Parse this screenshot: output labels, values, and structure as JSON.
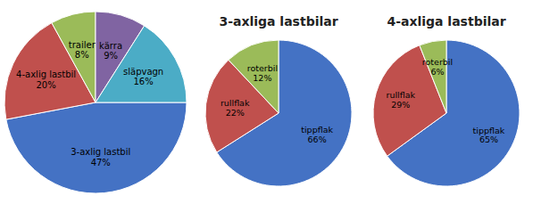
{
  "chart_data": [
    {
      "type": "pie",
      "categories": [
        "3-axlig lastbil",
        "4-axlig lastbil",
        "trailer",
        "kärra",
        "släpvagn"
      ],
      "values": [
        47,
        20,
        8,
        9,
        16
      ],
      "value_labels": [
        "47%",
        "20%",
        "8%",
        "9%",
        "16%"
      ],
      "colors": [
        "#4472C4",
        "#C0504D",
        "#9BBB59",
        "#8064A2",
        "#4BACC6"
      ],
      "data_labels": true
    },
    {
      "type": "pie",
      "title": "3-axliga lastbilar",
      "categories": [
        "tippflak",
        "rullflak",
        "roterbil"
      ],
      "values": [
        66,
        22,
        12
      ],
      "value_labels": [
        "66%",
        "22%",
        "12%"
      ],
      "colors": [
        "#4472C4",
        "#C0504D",
        "#9BBB59"
      ],
      "data_labels": true
    },
    {
      "type": "pie",
      "title": "4-axliga lastbilar",
      "categories": [
        "tippflak",
        "rullflak",
        "roterbil"
      ],
      "values": [
        65,
        29,
        6
      ],
      "value_labels": [
        "65%",
        "29%",
        "6%"
      ],
      "colors": [
        "#4472C4",
        "#C0504D",
        "#9BBB59"
      ],
      "data_labels": true
    }
  ]
}
